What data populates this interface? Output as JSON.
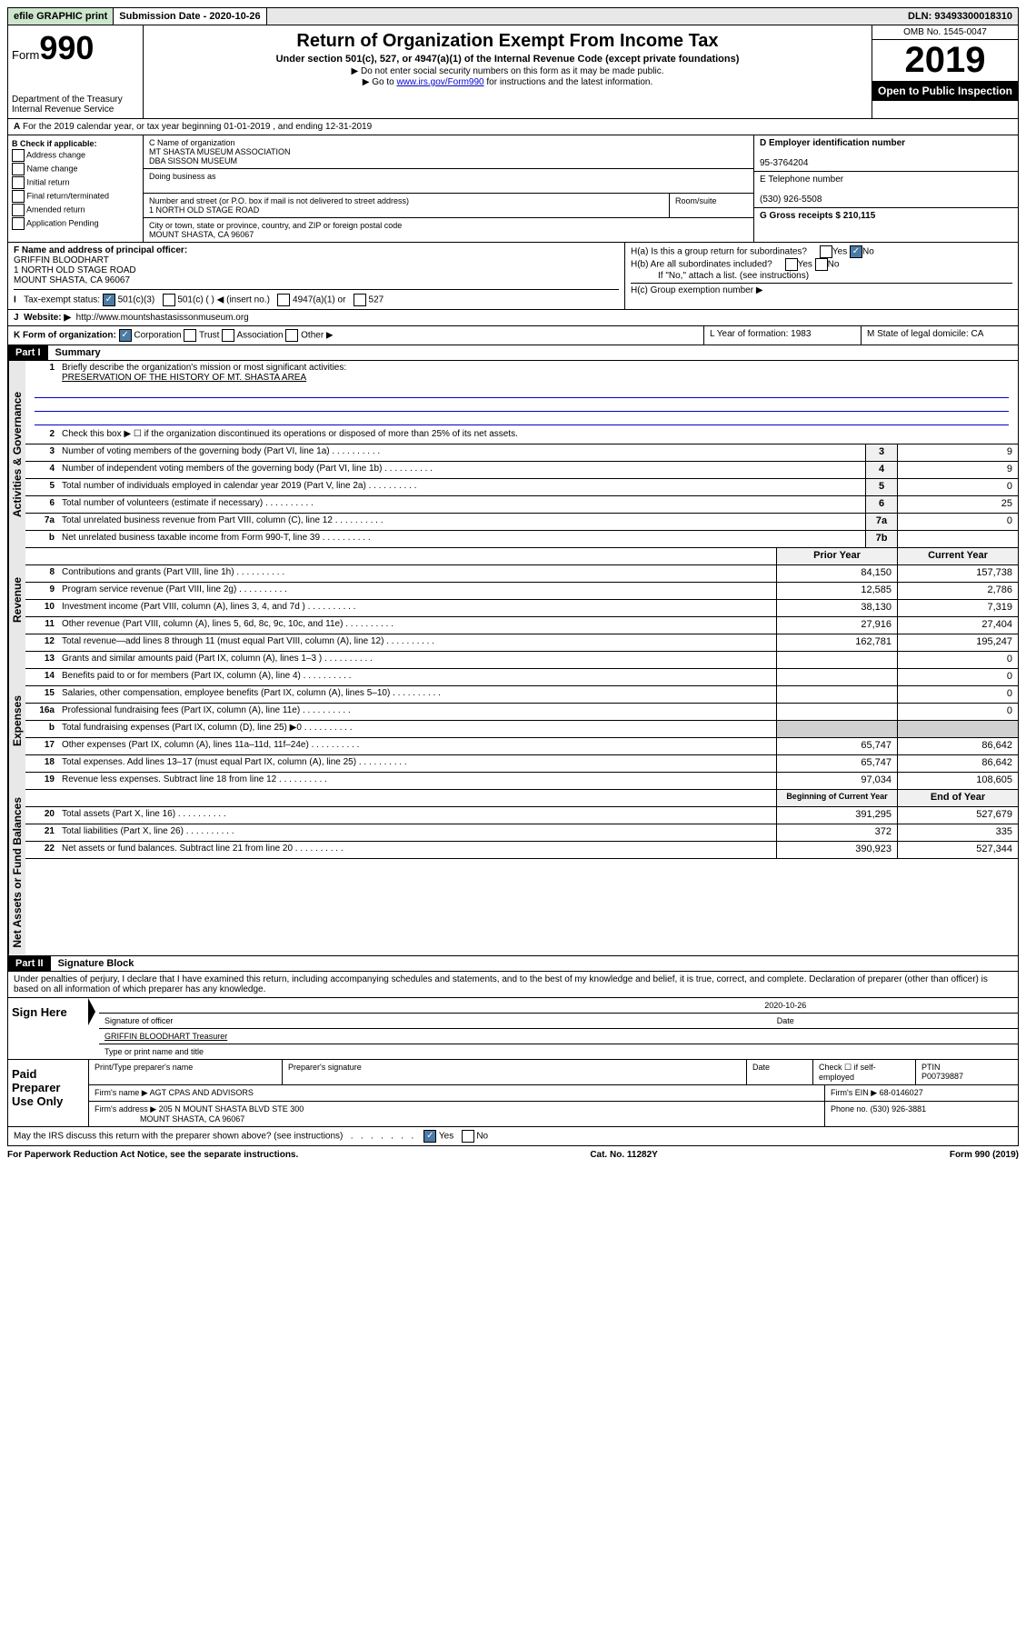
{
  "topbar": {
    "efile": "efile GRAPHIC print",
    "subdate_label": "Submission Date - 2020-10-26",
    "dln": "DLN: 93493300018310"
  },
  "header": {
    "form_label": "Form",
    "form_num": "990",
    "dept": "Department of the Treasury\nInternal Revenue Service",
    "title": "Return of Organization Exempt From Income Tax",
    "subtitle": "Under section 501(c), 527, or 4947(a)(1) of the Internal Revenue Code (except private foundations)",
    "note1": "▶ Do not enter social security numbers on this form as it may be made public.",
    "note2_pre": "▶ Go to ",
    "note2_link": "www.irs.gov/Form990",
    "note2_post": " for instructions and the latest information.",
    "omb": "OMB No. 1545-0047",
    "year": "2019",
    "open": "Open to Public Inspection"
  },
  "line_a": "For the 2019 calendar year, or tax year beginning 01-01-2019   , and ending 12-31-2019",
  "box_b": {
    "title": "B Check if applicable:",
    "opts": [
      "Address change",
      "Name change",
      "Initial return",
      "Final return/terminated",
      "Amended return",
      "Application Pending"
    ]
  },
  "box_c": {
    "name_label": "C Name of organization",
    "name1": "MT SHASTA MUSEUM ASSOCIATION",
    "name2": "DBA SISSON MUSEUM",
    "dba_label": "Doing business as",
    "addr_label": "Number and street (or P.O. box if mail is not delivered to street address)",
    "room_label": "Room/suite",
    "addr": "1 NORTH OLD STAGE ROAD",
    "city_label": "City or town, state or province, country, and ZIP or foreign postal code",
    "city": "MOUNT SHASTA, CA  96067"
  },
  "box_d": {
    "label": "D Employer identification number",
    "val": "95-3764204"
  },
  "box_e": {
    "label": "E Telephone number",
    "val": "(530) 926-5508"
  },
  "box_g": {
    "label": "G Gross receipts $ 210,115"
  },
  "box_f": {
    "label": "F  Name and address of principal officer:",
    "name": "GRIFFIN BLOODHART",
    "addr1": "1 NORTH OLD STAGE ROAD",
    "addr2": "MOUNT SHASTA, CA  96067"
  },
  "box_h": {
    "ha": "H(a)  Is this a group return for subordinates?",
    "hb": "H(b)  Are all subordinates included?",
    "hb2": "If \"No,\" attach a list. (see instructions)",
    "hc": "H(c)  Group exemption number ▶"
  },
  "box_i": {
    "label": "Tax-exempt status:",
    "opts": [
      "501(c)(3)",
      "501(c) (  ) ◀ (insert no.)",
      "4947(a)(1) or",
      "527"
    ]
  },
  "box_j": {
    "label": "Website: ▶",
    "val": "http://www.mountshastasissonmuseum.org"
  },
  "box_k": {
    "label": "K Form of organization:",
    "opts": [
      "Corporation",
      "Trust",
      "Association",
      "Other ▶"
    ]
  },
  "box_l": {
    "label": "L Year of formation: 1983"
  },
  "box_m": {
    "label": "M State of legal domicile: CA"
  },
  "part1": {
    "label": "Part I",
    "title": "Summary",
    "line1": "Briefly describe the organization's mission or most significant activities:",
    "mission": "PRESERVATION OF THE HISTORY OF MT. SHASTA AREA",
    "line2": "Check this box ▶ ☐  if the organization discontinued its operations or disposed of more than 25% of its net assets.",
    "governance": [
      {
        "n": "3",
        "t": "Number of voting members of the governing body (Part VI, line 1a)",
        "nb": "3",
        "v": "9"
      },
      {
        "n": "4",
        "t": "Number of independent voting members of the governing body (Part VI, line 1b)",
        "nb": "4",
        "v": "9"
      },
      {
        "n": "5",
        "t": "Total number of individuals employed in calendar year 2019 (Part V, line 2a)",
        "nb": "5",
        "v": "0"
      },
      {
        "n": "6",
        "t": "Total number of volunteers (estimate if necessary)",
        "nb": "6",
        "v": "25"
      },
      {
        "n": "7a",
        "t": "Total unrelated business revenue from Part VIII, column (C), line 12",
        "nb": "7a",
        "v": "0"
      },
      {
        "n": "b",
        "t": "Net unrelated business taxable income from Form 990-T, line 39",
        "nb": "7b",
        "v": ""
      }
    ],
    "col_prior": "Prior Year",
    "col_current": "Current Year",
    "revenue": [
      {
        "n": "8",
        "t": "Contributions and grants (Part VIII, line 1h)",
        "p": "84,150",
        "c": "157,738"
      },
      {
        "n": "9",
        "t": "Program service revenue (Part VIII, line 2g)",
        "p": "12,585",
        "c": "2,786"
      },
      {
        "n": "10",
        "t": "Investment income (Part VIII, column (A), lines 3, 4, and 7d )",
        "p": "38,130",
        "c": "7,319"
      },
      {
        "n": "11",
        "t": "Other revenue (Part VIII, column (A), lines 5, 6d, 8c, 9c, 10c, and 11e)",
        "p": "27,916",
        "c": "27,404"
      },
      {
        "n": "12",
        "t": "Total revenue—add lines 8 through 11 (must equal Part VIII, column (A), line 12)",
        "p": "162,781",
        "c": "195,247"
      }
    ],
    "expenses": [
      {
        "n": "13",
        "t": "Grants and similar amounts paid (Part IX, column (A), lines 1–3 )",
        "p": "",
        "c": "0"
      },
      {
        "n": "14",
        "t": "Benefits paid to or for members (Part IX, column (A), line 4)",
        "p": "",
        "c": "0"
      },
      {
        "n": "15",
        "t": "Salaries, other compensation, employee benefits (Part IX, column (A), lines 5–10)",
        "p": "",
        "c": "0"
      },
      {
        "n": "16a",
        "t": "Professional fundraising fees (Part IX, column (A), line 11e)",
        "p": "",
        "c": "0"
      },
      {
        "n": "b",
        "t": "Total fundraising expenses (Part IX, column (D), line 25) ▶0",
        "p": "gray",
        "c": "gray"
      },
      {
        "n": "17",
        "t": "Other expenses (Part IX, column (A), lines 11a–11d, 11f–24e)",
        "p": "65,747",
        "c": "86,642"
      },
      {
        "n": "18",
        "t": "Total expenses. Add lines 13–17 (must equal Part IX, column (A), line 25)",
        "p": "65,747",
        "c": "86,642"
      },
      {
        "n": "19",
        "t": "Revenue less expenses. Subtract line 18 from line 12",
        "p": "97,034",
        "c": "108,605"
      }
    ],
    "col_begin": "Beginning of Current Year",
    "col_end": "End of Year",
    "balances": [
      {
        "n": "20",
        "t": "Total assets (Part X, line 16)",
        "p": "391,295",
        "c": "527,679"
      },
      {
        "n": "21",
        "t": "Total liabilities (Part X, line 26)",
        "p": "372",
        "c": "335"
      },
      {
        "n": "22",
        "t": "Net assets or fund balances. Subtract line 21 from line 20",
        "p": "390,923",
        "c": "527,344"
      }
    ],
    "vert1": "Activities & Governance",
    "vert2": "Revenue",
    "vert3": "Expenses",
    "vert4": "Net Assets or Fund Balances"
  },
  "part2": {
    "label": "Part II",
    "title": "Signature Block",
    "declaration": "Under penalties of perjury, I declare that I have examined this return, including accompanying schedules and statements, and to the best of my knowledge and belief, it is true, correct, and complete. Declaration of preparer (other than officer) is based on all information of which preparer has any knowledge.",
    "sign_label": "Sign Here",
    "sig_date": "2020-10-26",
    "sig_officer_label": "Signature of officer",
    "date_label": "Date",
    "officer_name": "GRIFFIN BLOODHART Treasurer",
    "name_label": "Type or print name and title",
    "paid_label": "Paid Preparer Use Only",
    "prep_name_label": "Print/Type preparer's name",
    "prep_sig_label": "Preparer's signature",
    "prep_date_label": "Date",
    "check_self": "Check ☐ if self-employed",
    "ptin_label": "PTIN",
    "ptin": "P00739887",
    "firm_name_label": "Firm's name    ▶",
    "firm_name": "AGT CPAS AND ADVISORS",
    "firm_ein_label": "Firm's EIN ▶",
    "firm_ein": "68-0146027",
    "firm_addr_label": "Firm's address ▶",
    "firm_addr1": "205 N MOUNT SHASTA BLVD STE 300",
    "firm_addr2": "MOUNT SHASTA, CA  96067",
    "phone_label": "Phone no.",
    "phone": "(530) 926-3881",
    "discuss": "May the IRS discuss this return with the preparer shown above? (see instructions)"
  },
  "footer": {
    "left": "For Paperwork Reduction Act Notice, see the separate instructions.",
    "mid": "Cat. No. 11282Y",
    "right": "Form 990 (2019)"
  }
}
